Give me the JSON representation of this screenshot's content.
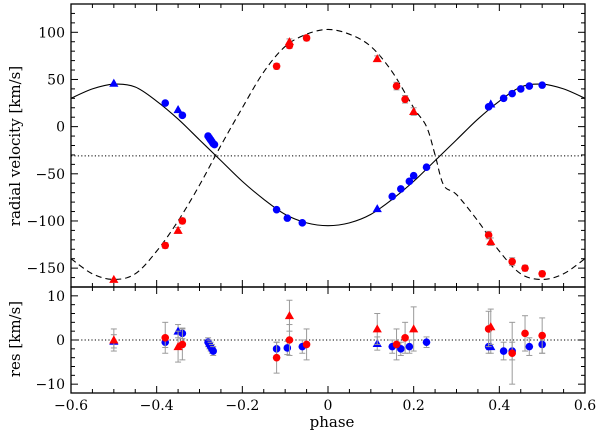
{
  "chart_data": [
    {
      "type": "line",
      "panel": "top",
      "title": "",
      "xlabel": "",
      "ylabel": "radial velocity [km/s]",
      "xlim": [
        -0.6,
        0.6
      ],
      "ylim": [
        -170,
        130
      ],
      "xticks": [
        "−0.6",
        "−0.4",
        "−0.2",
        "0",
        "0.2",
        "0.4",
        "0.6"
      ],
      "xtick_values": [
        -0.6,
        -0.4,
        -0.2,
        0,
        0.2,
        0.4,
        0.6
      ],
      "show_xtick_labels": false,
      "yticks": [
        "100",
        "50",
        "0",
        "−50",
        "−100",
        "−150"
      ],
      "ytick_values": [
        100,
        50,
        0,
        -50,
        -100,
        -150
      ],
      "systemic_velocity": -31,
      "model_curves": [
        {
          "name": "primary model",
          "style": "solid",
          "color": "#000000",
          "x": [
            -0.6,
            -0.55,
            -0.5,
            -0.45,
            -0.4,
            -0.35,
            -0.3,
            -0.25,
            -0.2,
            -0.15,
            -0.1,
            -0.05,
            0.0,
            0.05,
            0.1,
            0.15,
            0.2,
            0.25,
            0.3,
            0.35,
            0.4,
            0.45,
            0.5,
            0.55,
            0.6
          ],
          "y": [
            30,
            40,
            45,
            42,
            27,
            8,
            -14,
            -36,
            -58,
            -77,
            -93,
            -102,
            -105,
            -102,
            -93,
            -77,
            -58,
            -36,
            -14,
            8,
            27,
            42,
            45,
            40,
            30
          ]
        },
        {
          "name": "secondary model",
          "style": "dashed",
          "color": "#000000",
          "x": [
            -0.6,
            -0.55,
            -0.5,
            -0.45,
            -0.4,
            -0.35,
            -0.3,
            -0.25,
            -0.2,
            -0.15,
            -0.1,
            -0.05,
            0.0,
            0.05,
            0.1,
            0.15,
            0.2,
            0.23,
            0.25,
            0.27,
            0.3,
            0.35,
            0.4,
            0.45,
            0.5,
            0.55,
            0.6
          ],
          "y": [
            -140,
            -156,
            -162,
            -156,
            -132,
            -100,
            -62,
            -20,
            20,
            58,
            85,
            98,
            103,
            98,
            85,
            58,
            20,
            0,
            -30,
            -62,
            -72,
            -100,
            -132,
            -156,
            -162,
            -156,
            -140
          ]
        }
      ],
      "series": [
        {
          "name": "primary circles",
          "marker": "circle",
          "color": "#0000ff",
          "x": [
            -0.38,
            -0.34,
            -0.28,
            -0.277,
            -0.274,
            -0.271,
            -0.268,
            -0.265,
            -0.12,
            -0.095,
            -0.06,
            0.15,
            0.17,
            0.19,
            0.2,
            0.23,
            0.375,
            0.41,
            0.43,
            0.45,
            0.47,
            0.5
          ],
          "y": [
            25,
            12,
            -10,
            -12,
            -14,
            -16,
            -18,
            -19,
            -88,
            -97,
            -102,
            -74,
            -66,
            -58,
            -52,
            -43,
            21,
            30,
            35,
            40,
            43,
            44
          ]
        },
        {
          "name": "primary triangles",
          "marker": "triangle",
          "color": "#0000ff",
          "x": [
            -0.5,
            -0.35,
            0.115,
            0.38
          ],
          "y": [
            46,
            18,
            -87,
            24
          ]
        },
        {
          "name": "secondary circles",
          "marker": "circle",
          "color": "#ff0000",
          "x": [
            -0.38,
            -0.34,
            -0.12,
            -0.09,
            -0.05,
            0.16,
            0.18,
            0.375,
            0.43,
            0.46,
            0.5
          ],
          "y": [
            -126,
            -100,
            64,
            86,
            94,
            43,
            29,
            -115,
            -143,
            -150,
            -156
          ],
          "errors": [
            3,
            3,
            3,
            3,
            3,
            4,
            4,
            4,
            4,
            3,
            3
          ]
        },
        {
          "name": "secondary triangles",
          "marker": "triangle",
          "color": "#ff0000",
          "x": [
            -0.5,
            -0.35,
            -0.09,
            0.115,
            0.2,
            0.38
          ],
          "y": [
            -162,
            -110,
            90,
            72,
            16,
            -122
          ],
          "errors": [
            0,
            3,
            3,
            3,
            4,
            4
          ]
        }
      ]
    },
    {
      "type": "scatter",
      "panel": "bottom",
      "title": "",
      "xlabel": "phase",
      "ylabel": "res [km/s]",
      "xlim": [
        -0.6,
        0.6
      ],
      "ylim": [
        -12,
        12
      ],
      "xticks": [
        "−0.6",
        "−0.4",
        "−0.2",
        "0",
        "0.2",
        "0.4",
        "0.6"
      ],
      "xtick_values": [
        -0.6,
        -0.4,
        -0.2,
        0,
        0.2,
        0.4,
        0.6
      ],
      "show_xtick_labels": true,
      "yticks": [
        "10",
        "0",
        "−10"
      ],
      "ytick_values": [
        10,
        0,
        -10
      ],
      "zero_line": 0,
      "series": [
        {
          "name": "primary circle residuals",
          "marker": "circle",
          "color": "#0000ff",
          "x": [
            -0.38,
            -0.34,
            -0.28,
            -0.277,
            -0.274,
            -0.271,
            -0.268,
            -0.12,
            -0.095,
            -0.06,
            0.15,
            0.17,
            0.19,
            0.23,
            0.375,
            0.41,
            0.43,
            0.47,
            0.5
          ],
          "y": [
            -0.5,
            1.5,
            -0.5,
            -1.0,
            -1.5,
            -2.0,
            -2.5,
            -2.0,
            -1.8,
            -1.5,
            -1.5,
            -2.0,
            -1.5,
            -0.5,
            -1.5,
            -2.5,
            -2.5,
            -1.5,
            -1.0
          ],
          "errors": [
            1.2,
            1.2,
            1.0,
            1.0,
            1.0,
            1.0,
            1.0,
            1.5,
            1.5,
            1.5,
            1.5,
            1.5,
            1.5,
            1.2,
            1.5,
            2.0,
            2.0,
            2.0,
            2.0
          ]
        },
        {
          "name": "primary triangle residuals",
          "marker": "triangle",
          "color": "#0000ff",
          "x": [
            -0.5,
            -0.35,
            0.115,
            0.38
          ],
          "y": [
            -0.3,
            2.0,
            -0.8,
            -1.5
          ],
          "errors": [
            1.5,
            1.5,
            1.5,
            1.5
          ]
        },
        {
          "name": "secondary circle residuals",
          "marker": "circle",
          "color": "#ff0000",
          "x": [
            -0.38,
            -0.34,
            -0.12,
            -0.09,
            -0.05,
            0.16,
            0.18,
            0.375,
            0.43,
            0.46,
            0.5
          ],
          "y": [
            0.5,
            -1.0,
            -4.0,
            0.0,
            -1.0,
            -1.0,
            0.5,
            2.5,
            -3.0,
            1.5,
            1.0
          ],
          "errors": [
            3.5,
            3.5,
            3.5,
            3.5,
            3.5,
            3.5,
            3.5,
            4.0,
            7.0,
            4.0,
            4.0
          ]
        },
        {
          "name": "secondary triangle residuals",
          "marker": "triangle",
          "color": "#ff0000",
          "x": [
            -0.5,
            -0.35,
            -0.09,
            0.115,
            0.2,
            0.38
          ],
          "y": [
            0.0,
            -1.5,
            5.5,
            2.5,
            2.5,
            3.0
          ],
          "errors": [
            2.5,
            3.5,
            3.5,
            3.5,
            5.0,
            4.0
          ]
        }
      ]
    }
  ]
}
